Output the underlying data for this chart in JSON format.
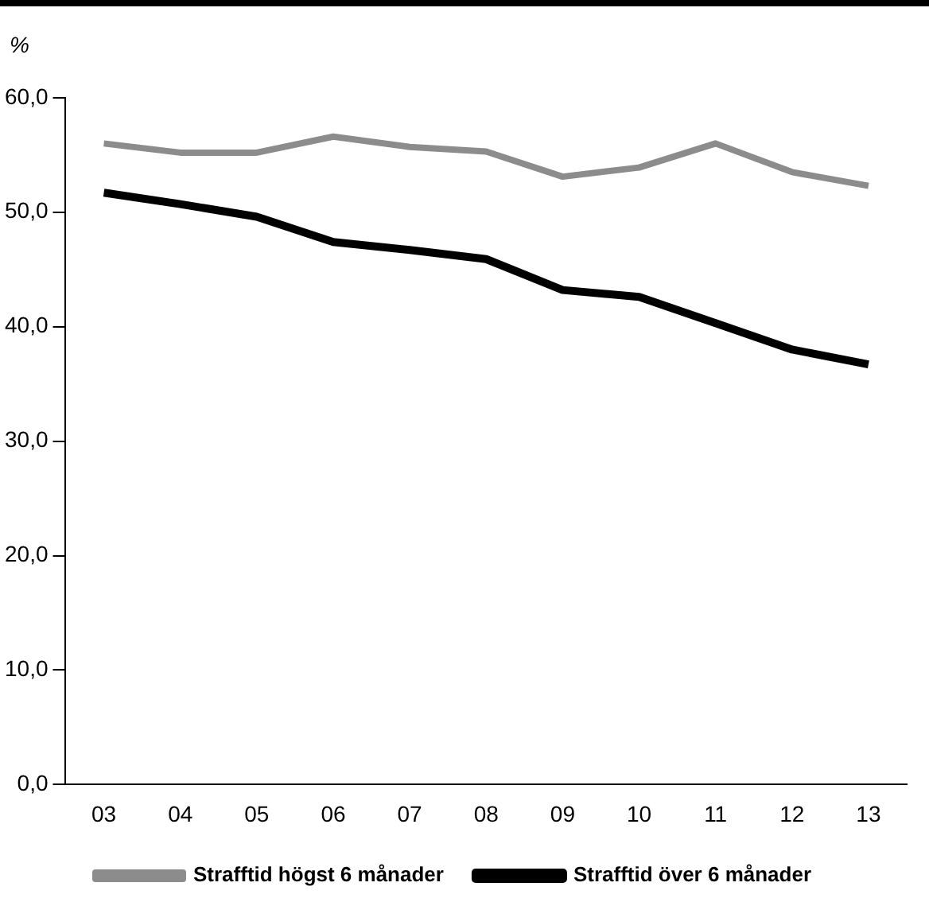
{
  "chart_data": {
    "type": "line",
    "ylabel": "%",
    "categories": [
      "03",
      "04",
      "05",
      "06",
      "07",
      "08",
      "09",
      "10",
      "11",
      "12",
      "13"
    ],
    "series": [
      {
        "name": "Strafftid högst 6 månader",
        "color": "#8c8c8c",
        "values": [
          56.0,
          55.2,
          55.2,
          56.6,
          55.7,
          55.3,
          53.1,
          53.9,
          56.0,
          53.5,
          52.3
        ]
      },
      {
        "name": "Strafftid över 6 månader",
        "color": "#000000",
        "values": [
          51.7,
          50.7,
          49.6,
          47.4,
          46.7,
          45.9,
          43.2,
          42.6,
          40.3,
          38.0,
          36.7
        ]
      }
    ],
    "ylim": [
      0,
      60
    ],
    "yticks": [
      {
        "value": 0,
        "label": "0,0"
      },
      {
        "value": 10,
        "label": "10,0"
      },
      {
        "value": 20,
        "label": "20,0"
      },
      {
        "value": 30,
        "label": "30,0"
      },
      {
        "value": 40,
        "label": "40,0"
      },
      {
        "value": 50,
        "label": "50,0"
      },
      {
        "value": 60,
        "label": "60,0"
      }
    ],
    "grid": false,
    "legend": "bottom",
    "marker": "none",
    "line_style": "solid"
  }
}
